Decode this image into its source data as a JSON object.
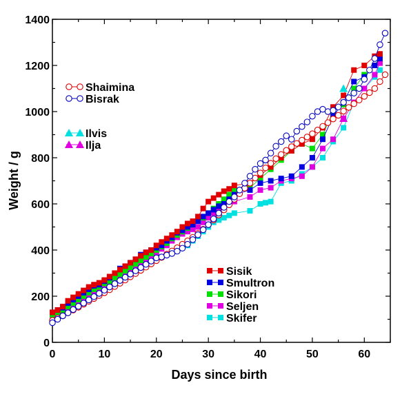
{
  "chart_data": {
    "type": "line",
    "title": "",
    "xlabel": "Days since birth",
    "ylabel": "Weight / g",
    "xlim": [
      0,
      65
    ],
    "ylim": [
      0,
      1400
    ],
    "xticks": [
      0,
      10,
      20,
      30,
      40,
      50,
      60
    ],
    "yticks": [
      0,
      200,
      400,
      600,
      800,
      1000,
      1200,
      1400
    ],
    "grid": false,
    "legend_groups": [
      [
        "Shaimina",
        "Bisrak"
      ],
      [
        "Ilvis",
        "Ilja"
      ],
      [
        "Sisik",
        "Smultron",
        "Sikori",
        "Seljen",
        "Skifer"
      ]
    ],
    "series": [
      {
        "name": "Shaimina",
        "color": "#e00000",
        "marker": "open-circle",
        "x": [
          0,
          1,
          2,
          3,
          4,
          5,
          6,
          7,
          8,
          9,
          10,
          11,
          12,
          13,
          14,
          15,
          16,
          17,
          18,
          19,
          20,
          21,
          22,
          23,
          24,
          25,
          26,
          27,
          28,
          29,
          30,
          31,
          32,
          33,
          34,
          35,
          36,
          37,
          38,
          39,
          40,
          41,
          42,
          43,
          44,
          45,
          46,
          47,
          48,
          49,
          50,
          51,
          52,
          53,
          54,
          55,
          56,
          57,
          58,
          59,
          60,
          61,
          62,
          63,
          64
        ],
        "y": [
          95,
          105,
          115,
          128,
          140,
          152,
          165,
          178,
          190,
          203,
          215,
          228,
          242,
          256,
          270,
          284,
          298,
          312,
          326,
          340,
          354,
          368,
          382,
          396,
          410,
          425,
          440,
          455,
          472,
          490,
          510,
          530,
          552,
          574,
          596,
          620,
          644,
          668,
          690,
          712,
          734,
          756,
          776,
          796,
          814,
          832,
          848,
          862,
          876,
          890,
          904,
          920,
          936,
          952,
          968,
          984,
          1002,
          1018,
          1034,
          1050,
          1066,
          1082,
          1100,
          1130,
          1160
        ]
      },
      {
        "name": "Bisrak",
        "color": "#0000c0",
        "marker": "open-circle",
        "x": [
          0,
          1,
          2,
          3,
          4,
          5,
          6,
          7,
          8,
          9,
          10,
          11,
          12,
          13,
          14,
          15,
          16,
          17,
          18,
          19,
          20,
          21,
          22,
          23,
          24,
          25,
          26,
          27,
          28,
          29,
          30,
          31,
          32,
          33,
          34,
          35,
          36,
          37,
          38,
          39,
          40,
          41,
          42,
          43,
          44,
          45,
          46,
          47,
          48,
          49,
          50,
          51,
          52,
          53,
          54,
          55,
          56,
          57,
          58,
          59,
          60,
          61,
          62,
          63,
          64
        ],
        "y": [
          85,
          100,
          115,
          128,
          142,
          156,
          170,
          184,
          198,
          212,
          226,
          240,
          254,
          268,
          282,
          296,
          310,
          324,
          338,
          352,
          366,
          370,
          378,
          385,
          395,
          408,
          425,
          445,
          466,
          488,
          510,
          535,
          560,
          585,
          610,
          630,
          660,
          690,
          720,
          750,
          775,
          790,
          820,
          850,
          870,
          895,
          880,
          915,
          935,
          955,
          980,
          1000,
          1010,
          1000,
          1005,
          1020,
          1040,
          1060,
          1080,
          1100,
          1140,
          1180,
          1230,
          1290,
          1340
        ]
      },
      {
        "name": "Ilvis",
        "color": "#00e0e0",
        "marker": "triangle",
        "x": [
          56
        ],
        "y": [
          1100
        ]
      },
      {
        "name": "Ilja",
        "color": "#e000e0",
        "marker": "triangle",
        "x": [
          56
        ],
        "y": [
          970
        ]
      },
      {
        "name": "Sisik",
        "color": "#e00000",
        "marker": "square",
        "x": [
          0,
          1,
          2,
          3,
          4,
          5,
          6,
          7,
          8,
          9,
          10,
          11,
          12,
          13,
          14,
          15,
          16,
          17,
          18,
          19,
          20,
          21,
          22,
          23,
          24,
          25,
          26,
          27,
          28,
          29,
          30,
          31,
          32,
          33,
          34,
          35,
          38,
          40,
          42,
          44,
          46,
          48,
          50,
          52,
          54,
          56,
          58,
          60,
          62,
          63
        ],
        "y": [
          130,
          140,
          155,
          180,
          195,
          210,
          225,
          240,
          250,
          258,
          270,
          285,
          300,
          315,
          330,
          345,
          360,
          375,
          390,
          400,
          420,
          435,
          450,
          465,
          480,
          500,
          515,
          525,
          545,
          580,
          610,
          625,
          640,
          655,
          665,
          680,
          690,
          725,
          760,
          800,
          830,
          860,
          880,
          930,
          1020,
          1070,
          1180,
          1200,
          1240,
          1250
        ]
      },
      {
        "name": "Smultron",
        "color": "#0000e0",
        "marker": "square",
        "x": [
          0,
          1,
          2,
          3,
          4,
          5,
          6,
          7,
          8,
          9,
          10,
          11,
          12,
          13,
          14,
          15,
          16,
          17,
          18,
          19,
          20,
          21,
          22,
          23,
          24,
          25,
          26,
          27,
          28,
          29,
          30,
          31,
          32,
          33,
          34,
          35,
          38,
          40,
          42,
          44,
          46,
          48,
          50,
          52,
          54,
          56,
          58,
          60,
          62,
          63
        ],
        "y": [
          130,
          140,
          150,
          170,
          185,
          200,
          215,
          230,
          245,
          250,
          265,
          280,
          300,
          320,
          330,
          345,
          360,
          380,
          390,
          400,
          410,
          420,
          440,
          455,
          475,
          485,
          500,
          510,
          525,
          545,
          560,
          575,
          590,
          600,
          620,
          640,
          660,
          690,
          700,
          710,
          720,
          760,
          800,
          880,
          980,
          1040,
          1130,
          1150,
          1200,
          1230
        ]
      },
      {
        "name": "Sikori",
        "color": "#00e000",
        "marker": "square",
        "x": [
          0,
          1,
          2,
          3,
          4,
          5,
          6,
          7,
          8,
          9,
          10,
          11,
          12,
          13,
          14,
          15,
          16,
          17,
          18,
          19,
          20,
          21,
          22,
          23,
          24,
          25,
          26,
          27,
          28,
          29,
          30,
          31,
          32,
          33,
          34,
          35,
          38,
          40,
          42,
          44,
          46,
          48,
          50,
          52,
          54,
          56,
          58,
          60,
          62,
          63
        ],
        "y": [
          120,
          130,
          140,
          155,
          170,
          185,
          200,
          215,
          230,
          240,
          255,
          265,
          280,
          295,
          310,
          325,
          340,
          355,
          370,
          385,
          400,
          415,
          430,
          450,
          465,
          480,
          495,
          510,
          525,
          540,
          560,
          580,
          600,
          620,
          640,
          660,
          670,
          710,
          750,
          790,
          830,
          860,
          840,
          900,
          1000,
          1030,
          1100,
          1160,
          1200,
          1240
        ]
      },
      {
        "name": "Seljen",
        "color": "#e000e0",
        "marker": "square",
        "x": [
          0,
          1,
          2,
          3,
          4,
          5,
          6,
          7,
          8,
          9,
          10,
          11,
          12,
          13,
          14,
          15,
          16,
          17,
          18,
          19,
          20,
          21,
          22,
          23,
          24,
          25,
          26,
          27,
          28,
          29,
          30,
          31,
          32,
          33,
          34,
          35,
          38,
          40,
          42,
          44,
          46,
          48,
          50,
          52,
          54,
          56,
          58,
          60,
          62,
          63
        ],
        "y": [
          110,
          120,
          130,
          145,
          160,
          175,
          190,
          205,
          220,
          230,
          240,
          250,
          262,
          275,
          290,
          305,
          320,
          335,
          350,
          365,
          385,
          405,
          420,
          440,
          455,
          470,
          480,
          490,
          500,
          520,
          540,
          560,
          580,
          590,
          600,
          610,
          630,
          660,
          670,
          700,
          710,
          720,
          760,
          840,
          880,
          970,
          1040,
          1100,
          1160,
          1210
        ]
      },
      {
        "name": "Skifer",
        "color": "#00e0e0",
        "marker": "square",
        "x": [
          0,
          1,
          2,
          3,
          4,
          5,
          6,
          7,
          8,
          9,
          10,
          11,
          12,
          13,
          14,
          15,
          16,
          17,
          18,
          19,
          20,
          21,
          22,
          23,
          24,
          25,
          26,
          27,
          28,
          29,
          30,
          31,
          32,
          33,
          34,
          35,
          38,
          40,
          41,
          42,
          44,
          46,
          48,
          50,
          52,
          54,
          56,
          58,
          60,
          62,
          63
        ],
        "y": [
          130,
          135,
          145,
          160,
          175,
          190,
          205,
          215,
          225,
          235,
          245,
          255,
          265,
          275,
          285,
          300,
          310,
          325,
          340,
          350,
          360,
          370,
          380,
          390,
          400,
          410,
          420,
          440,
          460,
          480,
          500,
          520,
          530,
          540,
          550,
          560,
          570,
          600,
          605,
          610,
          690,
          700,
          730,
          760,
          800,
          870,
          930,
          1040,
          1100,
          1150,
          1180
        ]
      }
    ]
  }
}
